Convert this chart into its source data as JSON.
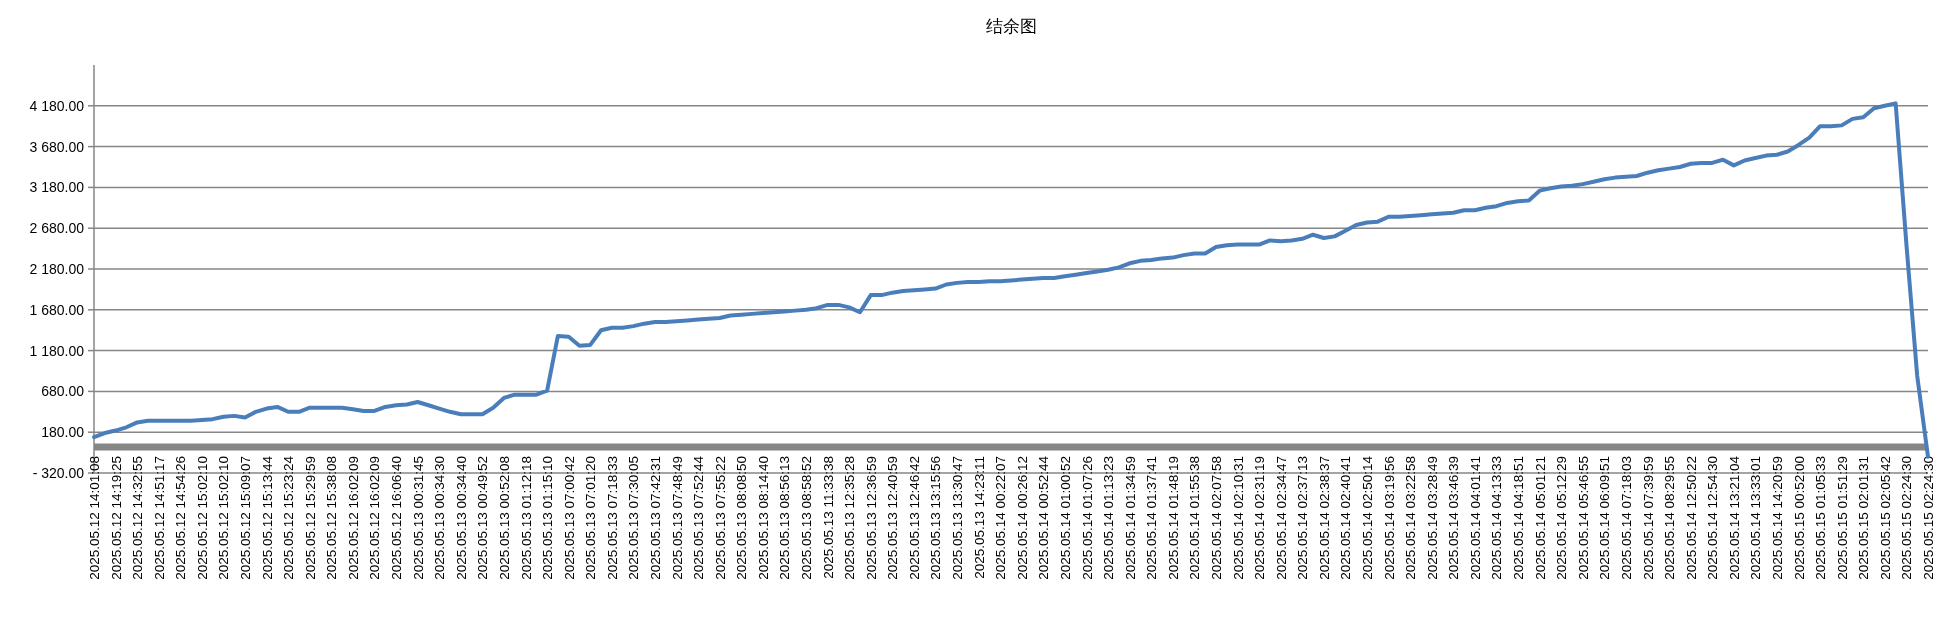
{
  "chart_data": {
    "type": "line",
    "title": "结余图",
    "categories": [
      "2025.05.12 14:01:08",
      null,
      "2025.05.12 14:19:25",
      null,
      "2025.05.12 14:32:55",
      null,
      "2025.05.12 14:51:17",
      null,
      "2025.05.12 14:54:26",
      null,
      "2025.05.12 15:02:10",
      null,
      "2025.05.12 15:02:10",
      null,
      "2025.05.12 15:09:07",
      null,
      "2025.05.12 15:13:44",
      null,
      "2025.05.12 15:23:24",
      null,
      "2025.05.12 15:29:59",
      null,
      "2025.05.12 15:38:08",
      null,
      "2025.05.12 16:02:09",
      null,
      "2025.05.12 16:02:09",
      null,
      "2025.05.12 16:06:40",
      null,
      "2025.05.13 00:31:45",
      null,
      "2025.05.13 00:34:30",
      null,
      "2025.05.13 00:34:40",
      null,
      "2025.05.13 00:49:52",
      null,
      "2025.05.13 00:52:08",
      null,
      "2025.05.13 01:12:18",
      null,
      "2025.05.13 01:15:10",
      null,
      "2025.05.13 07:00:42",
      null,
      "2025.05.13 07:01:20",
      null,
      "2025.05.13 07:18:33",
      null,
      "2025.05.13 07:30:05",
      null,
      "2025.05.13 07:42:31",
      null,
      "2025.05.13 07:48:49",
      null,
      "2025.05.13 07:52:44",
      null,
      "2025.05.13 07:55:22",
      null,
      "2025.05.13 08:08:50",
      null,
      "2025.05.13 08:14:40",
      null,
      "2025.05.13 08:56:13",
      null,
      "2025.05.13 08:58:52",
      null,
      "2025.05.13 11:33:38",
      null,
      "2025.05.13 12:35:28",
      null,
      "2025.05.13 12:36:59",
      null,
      "2025.05.13 12:40:59",
      null,
      "2025.05.13 12:46:42",
      null,
      "2025.05.13 13:15:56",
      null,
      "2025.05.13 13:30:47",
      null,
      "2025.05.13 14:23:11",
      null,
      "2025.05.14 00:22:07",
      null,
      "2025.05.14 00:26:12",
      null,
      "2025.05.14 00:52:44",
      null,
      "2025.05.14 01:00:52",
      null,
      "2025.05.14 01:07:26",
      null,
      "2025.05.14 01:13:23",
      null,
      "2025.05.14 01:34:59",
      null,
      "2025.05.14 01:37:41",
      null,
      "2025.05.14 01:48:19",
      null,
      "2025.05.14 01:55:38",
      null,
      "2025.05.14 02:07:58",
      null,
      "2025.05.14 02:10:31",
      null,
      "2025.05.14 02:31:19",
      null,
      "2025.05.14 02:34:47",
      null,
      "2025.05.14 02:37:13",
      null,
      "2025.05.14 02:38:37",
      null,
      "2025.05.14 02:40:41",
      null,
      "2025.05.14 02:50:14",
      null,
      "2025.05.14 03:19:56",
      null,
      "2025.05.14 03:22:58",
      null,
      "2025.05.14 03:28:49",
      null,
      "2025.05.14 03:46:39",
      null,
      "2025.05.14 04:01:41",
      null,
      "2025.05.14 04:13:33",
      null,
      "2025.05.14 04:18:51",
      null,
      "2025.05.14 05:01:21",
      null,
      "2025.05.14 05:12:29",
      null,
      "2025.05.14 05:46:55",
      null,
      "2025.05.14 06:09:51",
      null,
      "2025.05.14 07:18:03",
      null,
      "2025.05.14 07:39:59",
      null,
      "2025.05.14 08:29:55",
      null,
      "2025.05.14 12:50:22",
      null,
      "2025.05.14 12:54:30",
      null,
      "2025.05.14 13:21:04",
      null,
      "2025.05.14 13:33:01",
      null,
      "2025.05.14 14:20:59",
      null,
      "2025.05.15 00:52:00",
      null,
      "2025.05.15 01:05:33",
      null,
      "2025.05.15 01:51:29",
      null,
      "2025.05.15 02:01:31",
      null,
      "2025.05.15 02:05:42",
      null,
      "2025.05.15 02:24:30",
      null,
      "2025.05.15 02:24:30"
    ],
    "series": [
      {
        "color": "#4a7ebb",
        "values": [
          120,
          170,
          200,
          240,
          300,
          320,
          320,
          320,
          320,
          320,
          330,
          340,
          370,
          380,
          360,
          430,
          470,
          490,
          430,
          430,
          480,
          480,
          480,
          480,
          460,
          440,
          440,
          490,
          510,
          520,
          550,
          510,
          470,
          430,
          400,
          400,
          400,
          480,
          600,
          640,
          640,
          640,
          690,
          1360,
          1350,
          1240,
          1250,
          1430,
          1460,
          1460,
          1480,
          1510,
          1530,
          1530,
          1540,
          1550,
          1560,
          1570,
          1580,
          1610,
          1620,
          1630,
          1640,
          1650,
          1660,
          1670,
          1680,
          1700,
          1740,
          1740,
          1710,
          1650,
          1860,
          1860,
          1890,
          1910,
          1920,
          1930,
          1940,
          1990,
          2010,
          2020,
          2020,
          2030,
          2030,
          2040,
          2050,
          2060,
          2070,
          2070,
          2090,
          2110,
          2130,
          2150,
          2170,
          2200,
          2250,
          2280,
          2290,
          2310,
          2320,
          2350,
          2370,
          2370,
          2450,
          2470,
          2480,
          2480,
          2480,
          2530,
          2520,
          2530,
          2550,
          2600,
          2560,
          2580,
          2650,
          2720,
          2750,
          2760,
          2820,
          2820,
          2830,
          2840,
          2850,
          2860,
          2870,
          2900,
          2900,
          2930,
          2950,
          2990,
          3010,
          3020,
          3140,
          3170,
          3190,
          3200,
          3220,
          3250,
          3280,
          3300,
          3310,
          3320,
          3360,
          3390,
          3410,
          3430,
          3470,
          3480,
          3480,
          3520,
          3450,
          3510,
          3540,
          3570,
          3580,
          3620,
          3700,
          3790,
          3930,
          3930,
          3940,
          4020,
          4040,
          4150,
          4180,
          4210,
          2480,
          870,
          -120
        ]
      }
    ],
    "ylim": [
      -320,
      4680
    ],
    "yticks": [
      {
        "value": -320,
        "label": "- 320.00"
      },
      {
        "value": 180,
        "label": "180.00"
      },
      {
        "value": 680,
        "label": "680.00"
      },
      {
        "value": 1180,
        "label": "1 180.00"
      },
      {
        "value": 1680,
        "label": "1 680.00"
      },
      {
        "value": 2180,
        "label": "2 180.00"
      },
      {
        "value": 2680,
        "label": "2 680.00"
      },
      {
        "value": 3180,
        "label": "3 180.00"
      },
      {
        "value": 3680,
        "label": "3 680.00"
      },
      {
        "value": 4180,
        "label": "4 180.00"
      }
    ],
    "grid": "y",
    "ref_lines": [
      {
        "axis": "y",
        "value": 0,
        "color": "#868686"
      }
    ],
    "marker": "none",
    "line_style": "solid"
  }
}
